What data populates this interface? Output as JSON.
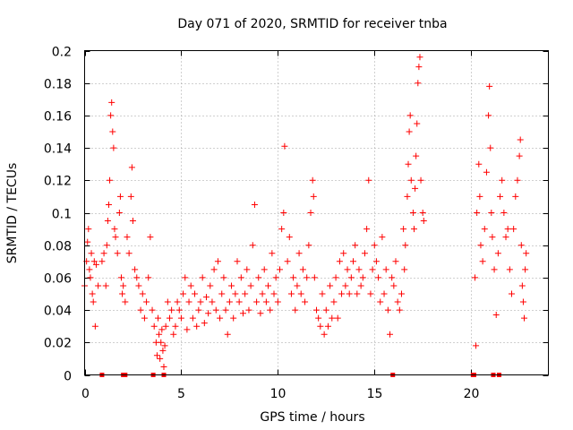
{
  "chart_data": {
    "type": "scatter",
    "title": "Day 071 of 2020, SRMTID for receiver tnba",
    "xlabel": "GPS time / hours",
    "ylabel": "SRMTID / TECUs",
    "xlim": [
      0,
      24
    ],
    "ylim": [
      0,
      0.2
    ],
    "x_ticks": [
      0,
      5,
      10,
      15,
      20
    ],
    "x_tick_labels": [
      "0",
      "5",
      "10",
      "15",
      "20"
    ],
    "y_ticks": [
      0,
      0.02,
      0.04,
      0.06,
      0.08,
      0.1,
      0.12,
      0.14,
      0.16,
      0.18,
      0.2
    ],
    "y_tick_labels": [
      "0",
      "0.02",
      "0.04",
      "0.06",
      "0.08",
      "0.1",
      "0.12",
      "0.14",
      "0.16",
      "0.18",
      "0.2"
    ],
    "grid": true,
    "marker": "+",
    "color": "#ff0000",
    "series": [
      {
        "name": "SRMTID",
        "points": [
          [
            0.0,
            0.055
          ],
          [
            0.1,
            0.07
          ],
          [
            0.15,
            0.082
          ],
          [
            0.2,
            0.09
          ],
          [
            0.25,
            0.065
          ],
          [
            0.3,
            0.06
          ],
          [
            0.35,
            0.075
          ],
          [
            0.4,
            0.05
          ],
          [
            0.45,
            0.045
          ],
          [
            0.5,
            0.07
          ],
          [
            0.55,
            0.03
          ],
          [
            0.6,
            0.068
          ],
          [
            0.7,
            0.055
          ],
          [
            0.9,
            0.07
          ],
          [
            1.0,
            0.075
          ],
          [
            1.1,
            0.055
          ],
          [
            1.15,
            0.08
          ],
          [
            1.2,
            0.095
          ],
          [
            1.25,
            0.105
          ],
          [
            1.3,
            0.12
          ],
          [
            1.35,
            0.16
          ],
          [
            1.4,
            0.168
          ],
          [
            1.45,
            0.15
          ],
          [
            1.5,
            0.14
          ],
          [
            1.55,
            0.09
          ],
          [
            1.6,
            0.085
          ],
          [
            1.7,
            0.075
          ],
          [
            1.8,
            0.1
          ],
          [
            1.85,
            0.11
          ],
          [
            1.9,
            0.06
          ],
          [
            1.95,
            0.05
          ],
          [
            2.0,
            0.055
          ],
          [
            2.1,
            0.045
          ],
          [
            2.2,
            0.085
          ],
          [
            2.3,
            0.075
          ],
          [
            2.4,
            0.11
          ],
          [
            2.45,
            0.128
          ],
          [
            2.5,
            0.095
          ],
          [
            2.6,
            0.065
          ],
          [
            2.7,
            0.06
          ],
          [
            2.8,
            0.055
          ],
          [
            2.9,
            0.04
          ],
          [
            3.0,
            0.05
          ],
          [
            3.1,
            0.035
          ],
          [
            3.2,
            0.045
          ],
          [
            3.3,
            0.06
          ],
          [
            3.4,
            0.085
          ],
          [
            3.5,
            0.04
          ],
          [
            3.6,
            0.03
          ],
          [
            3.7,
            0.02
          ],
          [
            3.75,
            0.012
          ],
          [
            3.8,
            0.035
          ],
          [
            3.85,
            0.025
          ],
          [
            3.9,
            0.01
          ],
          [
            3.95,
            0.02
          ],
          [
            4.0,
            0.028
          ],
          [
            4.05,
            0.015
          ],
          [
            4.1,
            0.005
          ],
          [
            4.15,
            0.018
          ],
          [
            4.2,
            0.03
          ],
          [
            4.3,
            0.045
          ],
          [
            4.4,
            0.035
          ],
          [
            4.5,
            0.04
          ],
          [
            4.6,
            0.025
          ],
          [
            4.7,
            0.03
          ],
          [
            4.8,
            0.045
          ],
          [
            4.9,
            0.04
          ],
          [
            5.0,
            0.035
          ],
          [
            5.1,
            0.05
          ],
          [
            5.2,
            0.06
          ],
          [
            5.3,
            0.028
          ],
          [
            5.4,
            0.045
          ],
          [
            5.5,
            0.055
          ],
          [
            5.6,
            0.035
          ],
          [
            5.7,
            0.05
          ],
          [
            5.8,
            0.03
          ],
          [
            5.9,
            0.04
          ],
          [
            6.0,
            0.045
          ],
          [
            6.1,
            0.06
          ],
          [
            6.2,
            0.032
          ],
          [
            6.3,
            0.048
          ],
          [
            6.4,
            0.038
          ],
          [
            6.5,
            0.055
          ],
          [
            6.6,
            0.045
          ],
          [
            6.7,
            0.065
          ],
          [
            6.8,
            0.04
          ],
          [
            6.9,
            0.07
          ],
          [
            7.0,
            0.035
          ],
          [
            7.1,
            0.05
          ],
          [
            7.2,
            0.06
          ],
          [
            7.3,
            0.04
          ],
          [
            7.4,
            0.025
          ],
          [
            7.5,
            0.045
          ],
          [
            7.6,
            0.055
          ],
          [
            7.7,
            0.035
          ],
          [
            7.8,
            0.05
          ],
          [
            7.9,
            0.07
          ],
          [
            8.0,
            0.045
          ],
          [
            8.1,
            0.06
          ],
          [
            8.2,
            0.038
          ],
          [
            8.3,
            0.05
          ],
          [
            8.4,
            0.065
          ],
          [
            8.5,
            0.04
          ],
          [
            8.6,
            0.055
          ],
          [
            8.7,
            0.08
          ],
          [
            8.8,
            0.105
          ],
          [
            8.9,
            0.045
          ],
          [
            9.0,
            0.06
          ],
          [
            9.1,
            0.038
          ],
          [
            9.2,
            0.05
          ],
          [
            9.3,
            0.065
          ],
          [
            9.4,
            0.045
          ],
          [
            9.5,
            0.055
          ],
          [
            9.6,
            0.04
          ],
          [
            9.7,
            0.075
          ],
          [
            9.8,
            0.05
          ],
          [
            9.9,
            0.06
          ],
          [
            10.0,
            0.045
          ],
          [
            10.1,
            0.065
          ],
          [
            10.2,
            0.09
          ],
          [
            10.3,
            0.1
          ],
          [
            10.35,
            0.141
          ],
          [
            10.5,
            0.07
          ],
          [
            10.6,
            0.085
          ],
          [
            10.7,
            0.05
          ],
          [
            10.8,
            0.06
          ],
          [
            10.9,
            0.04
          ],
          [
            11.0,
            0.055
          ],
          [
            11.1,
            0.075
          ],
          [
            11.2,
            0.05
          ],
          [
            11.3,
            0.065
          ],
          [
            11.4,
            0.045
          ],
          [
            11.5,
            0.06
          ],
          [
            11.6,
            0.08
          ],
          [
            11.7,
            0.1
          ],
          [
            11.8,
            0.12
          ],
          [
            11.85,
            0.11
          ],
          [
            11.9,
            0.06
          ],
          [
            12.0,
            0.04
          ],
          [
            12.1,
            0.035
          ],
          [
            12.2,
            0.03
          ],
          [
            12.3,
            0.05
          ],
          [
            12.4,
            0.025
          ],
          [
            12.5,
            0.04
          ],
          [
            12.6,
            0.03
          ],
          [
            12.7,
            0.055
          ],
          [
            12.8,
            0.035
          ],
          [
            12.9,
            0.045
          ],
          [
            13.0,
            0.06
          ],
          [
            13.1,
            0.035
          ],
          [
            13.2,
            0.07
          ],
          [
            13.3,
            0.05
          ],
          [
            13.4,
            0.075
          ],
          [
            13.5,
            0.055
          ],
          [
            13.6,
            0.065
          ],
          [
            13.7,
            0.05
          ],
          [
            13.8,
            0.06
          ],
          [
            13.9,
            0.07
          ],
          [
            14.0,
            0.08
          ],
          [
            14.1,
            0.05
          ],
          [
            14.2,
            0.065
          ],
          [
            14.3,
            0.055
          ],
          [
            14.4,
            0.06
          ],
          [
            14.5,
            0.075
          ],
          [
            14.6,
            0.09
          ],
          [
            14.7,
            0.12
          ],
          [
            14.8,
            0.05
          ],
          [
            14.9,
            0.065
          ],
          [
            15.0,
            0.08
          ],
          [
            15.1,
            0.07
          ],
          [
            15.2,
            0.06
          ],
          [
            15.3,
            0.045
          ],
          [
            15.4,
            0.085
          ],
          [
            15.5,
            0.05
          ],
          [
            15.6,
            0.065
          ],
          [
            15.7,
            0.04
          ],
          [
            15.8,
            0.025
          ],
          [
            15.9,
            0.06
          ],
          [
            16.0,
            0.055
          ],
          [
            16.1,
            0.07
          ],
          [
            16.2,
            0.045
          ],
          [
            16.3,
            0.04
          ],
          [
            16.4,
            0.05
          ],
          [
            16.5,
            0.09
          ],
          [
            16.55,
            0.065
          ],
          [
            16.6,
            0.08
          ],
          [
            16.7,
            0.11
          ],
          [
            16.75,
            0.13
          ],
          [
            16.8,
            0.15
          ],
          [
            16.85,
            0.16
          ],
          [
            16.9,
            0.12
          ],
          [
            17.0,
            0.1
          ],
          [
            17.05,
            0.09
          ],
          [
            17.1,
            0.115
          ],
          [
            17.15,
            0.135
          ],
          [
            17.2,
            0.155
          ],
          [
            17.25,
            0.18
          ],
          [
            17.3,
            0.19
          ],
          [
            17.35,
            0.196
          ],
          [
            17.4,
            0.12
          ],
          [
            17.5,
            0.1
          ],
          [
            17.55,
            0.095
          ],
          [
            20.2,
            0.06
          ],
          [
            20.25,
            0.018
          ],
          [
            20.3,
            0.1
          ],
          [
            20.4,
            0.13
          ],
          [
            20.45,
            0.11
          ],
          [
            20.5,
            0.08
          ],
          [
            20.6,
            0.07
          ],
          [
            20.7,
            0.09
          ],
          [
            20.8,
            0.125
          ],
          [
            20.9,
            0.16
          ],
          [
            20.95,
            0.178
          ],
          [
            21.0,
            0.14
          ],
          [
            21.05,
            0.1
          ],
          [
            21.1,
            0.085
          ],
          [
            21.2,
            0.065
          ],
          [
            21.3,
            0.037
          ],
          [
            21.4,
            0.075
          ],
          [
            21.5,
            0.11
          ],
          [
            21.6,
            0.12
          ],
          [
            21.7,
            0.1
          ],
          [
            21.8,
            0.085
          ],
          [
            21.9,
            0.09
          ],
          [
            22.0,
            0.065
          ],
          [
            22.1,
            0.05
          ],
          [
            22.2,
            0.09
          ],
          [
            22.3,
            0.11
          ],
          [
            22.4,
            0.12
          ],
          [
            22.5,
            0.135
          ],
          [
            22.55,
            0.145
          ],
          [
            22.6,
            0.08
          ],
          [
            22.65,
            0.055
          ],
          [
            22.7,
            0.045
          ],
          [
            22.75,
            0.035
          ],
          [
            22.8,
            0.065
          ],
          [
            22.85,
            0.075
          ]
        ]
      }
    ],
    "zero_markers": {
      "name": "flagged intervals at zero",
      "x": [
        0.9,
        2.0,
        2.1,
        3.55,
        4.1,
        15.95,
        20.1,
        20.15,
        21.15,
        21.45
      ]
    }
  }
}
